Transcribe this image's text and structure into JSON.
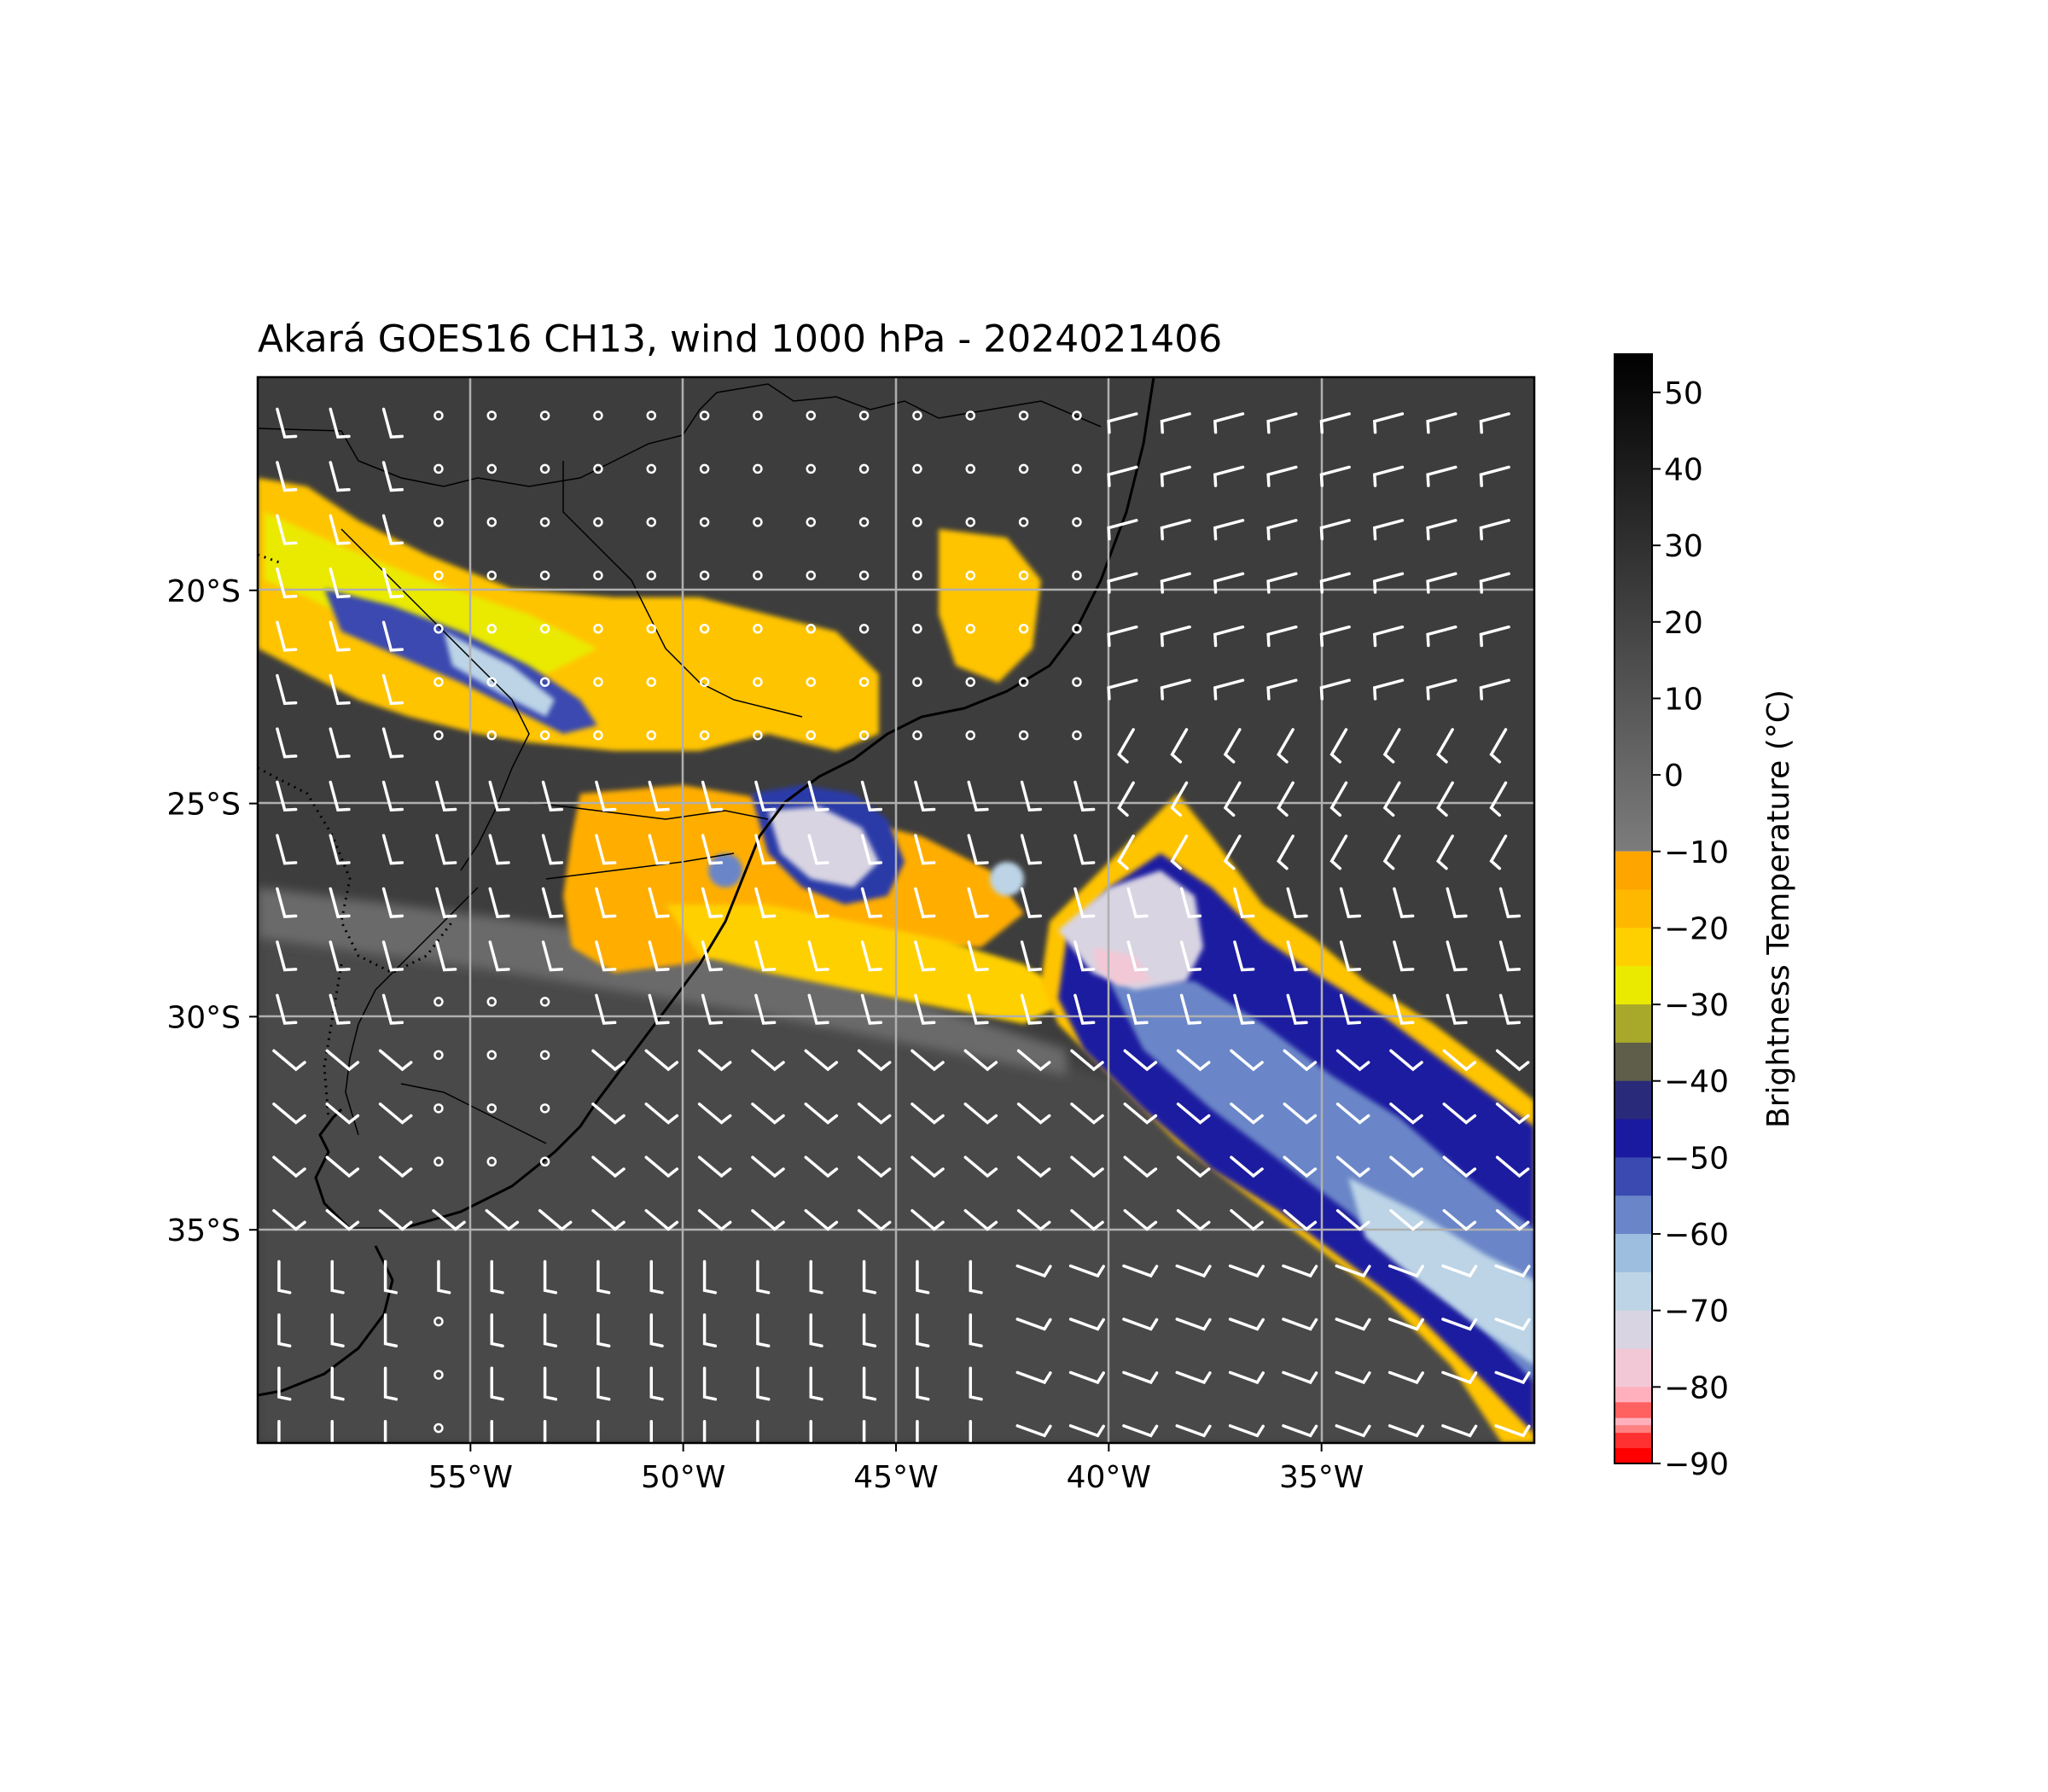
{
  "figure": {
    "title": "Akará GOES16 CH13, wind 1000 hPa - 2024021406"
  },
  "map": {
    "lon_range": [
      -60,
      -30
    ],
    "lat_range": [
      -40,
      -15
    ],
    "lon_ticks": [
      {
        "value": -55,
        "label": "55°W"
      },
      {
        "value": -50,
        "label": "50°W"
      },
      {
        "value": -45,
        "label": "45°W"
      },
      {
        "value": -40,
        "label": "40°W"
      },
      {
        "value": -35,
        "label": "35°W"
      }
    ],
    "lat_ticks": [
      {
        "value": -20,
        "label": "20°S"
      },
      {
        "value": -25,
        "label": "25°S"
      },
      {
        "value": -30,
        "label": "30°S"
      },
      {
        "value": -35,
        "label": "35°S"
      }
    ],
    "gridlines": true,
    "background_color": "#3e3e3e"
  },
  "colorbar": {
    "label": "Brightness Temperature (°C)",
    "ticks": [
      50,
      40,
      30,
      20,
      10,
      0,
      -10,
      -20,
      -30,
      -40,
      -50,
      -60,
      -70,
      -80,
      -90
    ],
    "tick_labels": [
      "50",
      "40",
      "30",
      "20",
      "10",
      "0",
      "−10",
      "−20",
      "−30",
      "−40",
      "−50",
      "−60",
      "−70",
      "−80",
      "−90"
    ],
    "range": [
      -90,
      55
    ],
    "gray_range": [
      -10,
      55
    ],
    "color_steps": [
      {
        "from": -10,
        "to": -15,
        "color": "#ffa500"
      },
      {
        "from": -15,
        "to": -20,
        "color": "#ffb800"
      },
      {
        "from": -20,
        "to": -25,
        "color": "#ffd000"
      },
      {
        "from": -25,
        "to": -30,
        "color": "#eaea00"
      },
      {
        "from": -30,
        "to": -35,
        "color": "#a8a82a"
      },
      {
        "from": -35,
        "to": -40,
        "color": "#5e5e4a"
      },
      {
        "from": -40,
        "to": -45,
        "color": "#2a2a7a"
      },
      {
        "from": -45,
        "to": -50,
        "color": "#1a1aa0"
      },
      {
        "from": -50,
        "to": -55,
        "color": "#3a4ab0"
      },
      {
        "from": -55,
        "to": -60,
        "color": "#6a86c8"
      },
      {
        "from": -60,
        "to": -65,
        "color": "#9dbedf"
      },
      {
        "from": -65,
        "to": -70,
        "color": "#bcd4e6"
      },
      {
        "from": -70,
        "to": -75,
        "color": "#d8d4e2"
      },
      {
        "from": -75,
        "to": -80,
        "color": "#f2c8d6"
      },
      {
        "from": -80,
        "to": -85,
        "color": "#ffb0bc"
      },
      {
        "from": -85,
        "to": -90,
        "color": "#ff8080"
      }
    ],
    "extra_steps": [
      {
        "from": -82,
        "to": -84,
        "color": "#ff6060"
      },
      {
        "from": -86,
        "to": -88,
        "color": "#ff3030"
      },
      {
        "from": -88,
        "to": -90,
        "color": "#ff0000"
      }
    ]
  }
}
